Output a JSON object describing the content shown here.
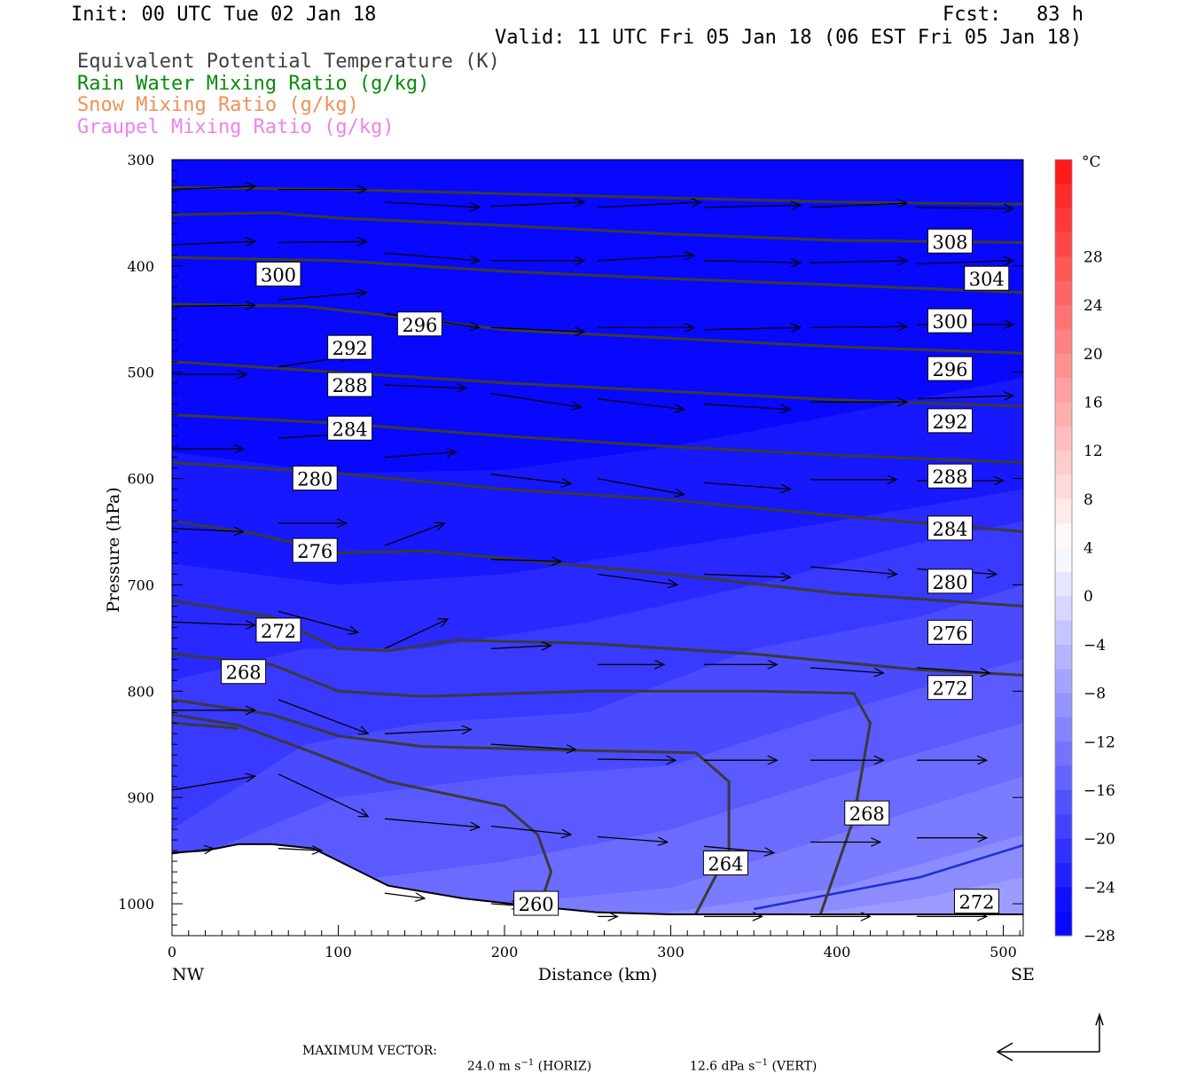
{
  "header": {
    "init": "Init: 00 UTC Tue 02 Jan 18",
    "fcst": "Fcst:   83 h",
    "valid": "Valid: 11 UTC Fri 05 Jan 18 (06 EST Fri 05 Jan 18)",
    "fields": [
      {
        "text": "Equivalent Potential Temperature (K)",
        "color": "#404040"
      },
      {
        "text": "Rain Water Mixing Ratio (g/kg)",
        "color": "#0a8a0a"
      },
      {
        "text": "Snow Mixing Ratio (g/kg)",
        "color": "#f0905a"
      },
      {
        "text": "Graupel Mixing Ratio (g/kg)",
        "color": "#ee82ee"
      }
    ]
  },
  "chart_data": {
    "type": "cross-section",
    "xlabel": "Distance (km)",
    "ylabel": "Pressure (hPa)",
    "xlim": [
      0,
      512
    ],
    "ylim": [
      1030,
      300
    ],
    "x_ticks": [
      0,
      100,
      200,
      300,
      400,
      500
    ],
    "y_ticks": [
      300,
      400,
      500,
      600,
      700,
      800,
      900,
      1000
    ],
    "x_end_labels": {
      "left": "NW",
      "right": "SE"
    },
    "colorbar": {
      "unit": "°C",
      "labels": [
        "28",
        "24",
        "20",
        "16",
        "12",
        "8",
        "4",
        "0",
        "−4",
        "−8",
        "−12",
        "−16",
        "−20",
        "−24",
        "−28"
      ],
      "range": [
        -32,
        32
      ],
      "step": 2
    },
    "terrain": [
      [
        0,
        952
      ],
      [
        20,
        950
      ],
      [
        40,
        944
      ],
      [
        60,
        944
      ],
      [
        85,
        948
      ],
      [
        130,
        983
      ],
      [
        175,
        995
      ],
      [
        215,
        1002
      ],
      [
        255,
        1008
      ],
      [
        300,
        1010
      ],
      [
        512,
        1010
      ]
    ],
    "temperature_bands": [
      {
        "temp": -30,
        "boundary": [
          [
            0,
            462
          ],
          [
            100,
            486
          ],
          [
            200,
            492
          ],
          [
            300,
            472
          ],
          [
            400,
            445
          ],
          [
            512,
            420
          ]
        ]
      },
      {
        "temp": -28,
        "boundary": [
          [
            0,
            575
          ],
          [
            100,
            595
          ],
          [
            200,
            592
          ],
          [
            300,
            570
          ],
          [
            400,
            540
          ],
          [
            512,
            505
          ]
        ]
      },
      {
        "temp": -26,
        "boundary": [
          [
            0,
            680
          ],
          [
            100,
            700
          ],
          [
            200,
            690
          ],
          [
            300,
            665
          ],
          [
            400,
            640
          ],
          [
            512,
            610
          ]
        ]
      },
      {
        "temp": -24,
        "boundary": [
          [
            0,
            790
          ],
          [
            80,
            760
          ],
          [
            150,
            760
          ],
          [
            250,
            735
          ],
          [
            350,
            700
          ],
          [
            450,
            660
          ],
          [
            512,
            640
          ]
        ]
      },
      {
        "temp": -22,
        "boundary": [
          [
            0,
            930
          ],
          [
            80,
            850
          ],
          [
            150,
            830
          ],
          [
            250,
            820
          ],
          [
            350,
            760
          ],
          [
            450,
            730
          ],
          [
            512,
            700
          ]
        ]
      },
      {
        "temp": -20,
        "boundary": [
          [
            30,
            946
          ],
          [
            100,
            900
          ],
          [
            200,
            880
          ],
          [
            300,
            870
          ],
          [
            400,
            820
          ],
          [
            512,
            770
          ]
        ]
      },
      {
        "temp": -18,
        "boundary": [
          [
            100,
            980
          ],
          [
            200,
            960
          ],
          [
            300,
            930
          ],
          [
            400,
            880
          ],
          [
            512,
            830
          ]
        ]
      },
      {
        "temp": -16,
        "boundary": [
          [
            200,
            1000
          ],
          [
            300,
            985
          ],
          [
            400,
            935
          ],
          [
            512,
            880
          ]
        ]
      },
      {
        "temp": -14,
        "boundary": [
          [
            300,
            1008
          ],
          [
            400,
            985
          ],
          [
            512,
            935
          ]
        ]
      },
      {
        "temp": -12,
        "boundary": [
          [
            390,
            1008
          ],
          [
            450,
            995
          ],
          [
            512,
            975
          ]
        ]
      }
    ],
    "freezing_line": [
      [
        350,
        1005
      ],
      [
        400,
        990
      ],
      [
        450,
        975
      ],
      [
        512,
        945
      ]
    ],
    "theta_e_contours": [
      {
        "value": 308,
        "points": [
          [
            0,
            326
          ],
          [
            100,
            328
          ],
          [
            200,
            332
          ],
          [
            300,
            336
          ],
          [
            400,
            340
          ],
          [
            512,
            342
          ]
        ]
      },
      {
        "value": 304,
        "points": [
          [
            0,
            352
          ],
          [
            60,
            350
          ],
          [
            100,
            355
          ],
          [
            200,
            362
          ],
          [
            300,
            370
          ],
          [
            400,
            376
          ],
          [
            512,
            378
          ]
        ]
      },
      {
        "value": 300,
        "points": [
          [
            0,
            392
          ],
          [
            100,
            395
          ],
          [
            200,
            405
          ],
          [
            300,
            412
          ],
          [
            400,
            418
          ],
          [
            512,
            425
          ]
        ]
      },
      {
        "value": 296,
        "points": [
          [
            0,
            436
          ],
          [
            80,
            438
          ],
          [
            120,
            445
          ],
          [
            200,
            460
          ],
          [
            300,
            468
          ],
          [
            400,
            476
          ],
          [
            512,
            482
          ]
        ]
      },
      {
        "value": 292,
        "points": [
          [
            0,
            490
          ],
          [
            100,
            500
          ],
          [
            200,
            510
          ],
          [
            300,
            518
          ],
          [
            400,
            526
          ],
          [
            512,
            532
          ]
        ]
      },
      {
        "value": 288,
        "points": [
          [
            0,
            540
          ],
          [
            100,
            548
          ],
          [
            200,
            560
          ],
          [
            300,
            570
          ],
          [
            400,
            578
          ],
          [
            512,
            585
          ]
        ]
      },
      {
        "value": 284,
        "points": [
          [
            0,
            585
          ],
          [
            100,
            595
          ],
          [
            200,
            610
          ],
          [
            300,
            620
          ],
          [
            400,
            635
          ],
          [
            512,
            650
          ]
        ]
      },
      {
        "value": 280,
        "points": [
          [
            0,
            640
          ],
          [
            50,
            652
          ],
          [
            100,
            670
          ],
          [
            150,
            668
          ],
          [
            200,
            675
          ],
          [
            300,
            690
          ],
          [
            400,
            708
          ],
          [
            512,
            720
          ]
        ]
      },
      {
        "value": 276,
        "points": [
          [
            0,
            715
          ],
          [
            60,
            730
          ],
          [
            100,
            760
          ],
          [
            130,
            762
          ],
          [
            170,
            752
          ],
          [
            250,
            755
          ],
          [
            350,
            765
          ],
          [
            450,
            780
          ],
          [
            512,
            785
          ]
        ]
      },
      {
        "value": 272,
        "points": [
          [
            0,
            765
          ],
          [
            60,
            775
          ],
          [
            100,
            800
          ],
          [
            150,
            805
          ],
          [
            250,
            800
          ],
          [
            350,
            800
          ],
          [
            410,
            802
          ],
          [
            420,
            830
          ],
          [
            410,
            920
          ],
          [
            390,
            1010
          ]
        ]
      },
      {
        "value": 268,
        "points": [
          [
            0,
            808
          ],
          [
            60,
            822
          ],
          [
            100,
            842
          ],
          [
            150,
            852
          ],
          [
            250,
            856
          ],
          [
            315,
            858
          ],
          [
            335,
            885
          ],
          [
            335,
            950
          ],
          [
            315,
            1010
          ]
        ]
      },
      {
        "value": 264,
        "points": [
          [
            0,
            822
          ],
          [
            40,
            832
          ],
          [
            80,
            855
          ],
          [
            130,
            885
          ],
          [
            200,
            908
          ],
          [
            220,
            935
          ],
          [
            228,
            970
          ],
          [
            220,
            1008
          ]
        ]
      },
      {
        "value": 260,
        "points": [
          [
            0,
            830
          ],
          [
            40,
            835
          ]
        ]
      }
    ],
    "contour_labels": [
      {
        "text": "308",
        "x": 468,
        "p": 377
      },
      {
        "text": "304",
        "x": 490,
        "p": 412
      },
      {
        "text": "300",
        "x": 64,
        "p": 408
      },
      {
        "text": "300",
        "x": 468,
        "p": 452
      },
      {
        "text": "296",
        "x": 149,
        "p": 455
      },
      {
        "text": "296",
        "x": 468,
        "p": 497
      },
      {
        "text": "292",
        "x": 107,
        "p": 477
      },
      {
        "text": "292",
        "x": 468,
        "p": 546
      },
      {
        "text": "288",
        "x": 107,
        "p": 512
      },
      {
        "text": "288",
        "x": 468,
        "p": 598
      },
      {
        "text": "284",
        "x": 107,
        "p": 553
      },
      {
        "text": "284",
        "x": 468,
        "p": 647
      },
      {
        "text": "280",
        "x": 86,
        "p": 600
      },
      {
        "text": "280",
        "x": 468,
        "p": 697
      },
      {
        "text": "276",
        "x": 86,
        "p": 668
      },
      {
        "text": "276",
        "x": 468,
        "p": 745
      },
      {
        "text": "272",
        "x": 64,
        "p": 743
      },
      {
        "text": "272",
        "x": 468,
        "p": 797
      },
      {
        "text": "268",
        "x": 43,
        "p": 782
      },
      {
        "text": "268",
        "x": 418,
        "p": 915
      },
      {
        "text": "264",
        "x": 333,
        "p": 962
      },
      {
        "text": "260",
        "x": 219,
        "p": 1000
      },
      {
        "text": "272",
        "x": 484,
        "p": 998
      }
    ],
    "wind_vectors": [
      [
        0,
        328,
        50,
        325
      ],
      [
        64,
        328,
        117,
        328
      ],
      [
        128,
        340,
        185,
        345
      ],
      [
        192,
        344,
        248,
        340
      ],
      [
        256,
        345,
        318,
        340
      ],
      [
        320,
        345,
        378,
        343
      ],
      [
        384,
        345,
        442,
        341
      ],
      [
        448,
        345,
        506,
        346
      ],
      [
        0,
        380,
        50,
        377
      ],
      [
        64,
        378,
        117,
        377
      ],
      [
        128,
        388,
        185,
        395
      ],
      [
        192,
        395,
        248,
        395
      ],
      [
        256,
        395,
        314,
        390
      ],
      [
        320,
        395,
        378,
        397
      ],
      [
        384,
        397,
        442,
        395
      ],
      [
        448,
        398,
        506,
        395
      ],
      [
        0,
        438,
        50,
        437
      ],
      [
        64,
        432,
        117,
        425
      ],
      [
        128,
        445,
        185,
        458
      ],
      [
        192,
        458,
        248,
        462
      ],
      [
        256,
        458,
        314,
        458
      ],
      [
        320,
        460,
        378,
        458
      ],
      [
        384,
        458,
        442,
        457
      ],
      [
        448,
        455,
        506,
        455
      ],
      [
        0,
        502,
        45,
        502
      ],
      [
        64,
        495,
        107,
        485
      ],
      [
        128,
        512,
        177,
        515
      ],
      [
        192,
        520,
        246,
        533
      ],
      [
        256,
        525,
        308,
        535
      ],
      [
        320,
        530,
        372,
        535
      ],
      [
        384,
        528,
        442,
        528
      ],
      [
        448,
        525,
        506,
        522
      ],
      [
        0,
        572,
        43,
        572
      ],
      [
        64,
        562,
        107,
        558
      ],
      [
        128,
        580,
        171,
        575
      ],
      [
        192,
        596,
        240,
        605
      ],
      [
        256,
        600,
        308,
        615
      ],
      [
        320,
        604,
        372,
        610
      ],
      [
        384,
        601,
        436,
        601
      ],
      [
        448,
        602,
        500,
        602
      ],
      [
        0,
        647,
        43,
        650
      ],
      [
        64,
        642,
        105,
        642
      ],
      [
        128,
        663,
        164,
        642
      ],
      [
        192,
        676,
        234,
        678
      ],
      [
        256,
        690,
        304,
        700
      ],
      [
        320,
        690,
        372,
        693
      ],
      [
        384,
        683,
        436,
        690
      ],
      [
        448,
        685,
        496,
        690
      ],
      [
        0,
        735,
        50,
        738
      ],
      [
        64,
        725,
        112,
        745
      ],
      [
        128,
        760,
        166,
        732
      ],
      [
        192,
        760,
        228,
        757
      ],
      [
        256,
        775,
        296,
        775
      ],
      [
        320,
        775,
        364,
        775
      ],
      [
        384,
        778,
        428,
        783
      ],
      [
        448,
        778,
        492,
        783
      ],
      [
        0,
        818,
        50,
        818
      ],
      [
        64,
        808,
        118,
        840
      ],
      [
        128,
        840,
        180,
        836
      ],
      [
        192,
        850,
        243,
        855
      ],
      [
        256,
        864,
        303,
        865
      ],
      [
        320,
        865,
        364,
        865
      ],
      [
        384,
        865,
        428,
        865
      ],
      [
        448,
        865,
        490,
        865
      ],
      [
        0,
        893,
        50,
        880
      ],
      [
        64,
        878,
        118,
        918
      ],
      [
        128,
        920,
        185,
        928
      ],
      [
        192,
        927,
        240,
        935
      ],
      [
        256,
        937,
        298,
        942
      ],
      [
        320,
        946,
        362,
        952
      ],
      [
        384,
        942,
        426,
        942
      ],
      [
        448,
        938,
        490,
        938
      ],
      [
        0,
        953,
        25,
        948
      ],
      [
        64,
        948,
        90,
        950
      ],
      [
        128,
        990,
        152,
        995
      ],
      [
        192,
        1000,
        210,
        1002
      ],
      [
        256,
        1012,
        268,
        1012
      ],
      [
        320,
        1012,
        355,
        1012
      ],
      [
        384,
        1012,
        420,
        1012
      ],
      [
        448,
        1012,
        490,
        1012
      ]
    ]
  },
  "footer": {
    "max_vector_label": "MAXIMUM VECTOR:",
    "horiz_value": "24.0 m s",
    "horiz_exp": "−1",
    "horiz_tag": "(HORIZ)",
    "vert_value": "12.6 dPa s",
    "vert_exp": "−1",
    "vert_tag": "(VERT)"
  }
}
